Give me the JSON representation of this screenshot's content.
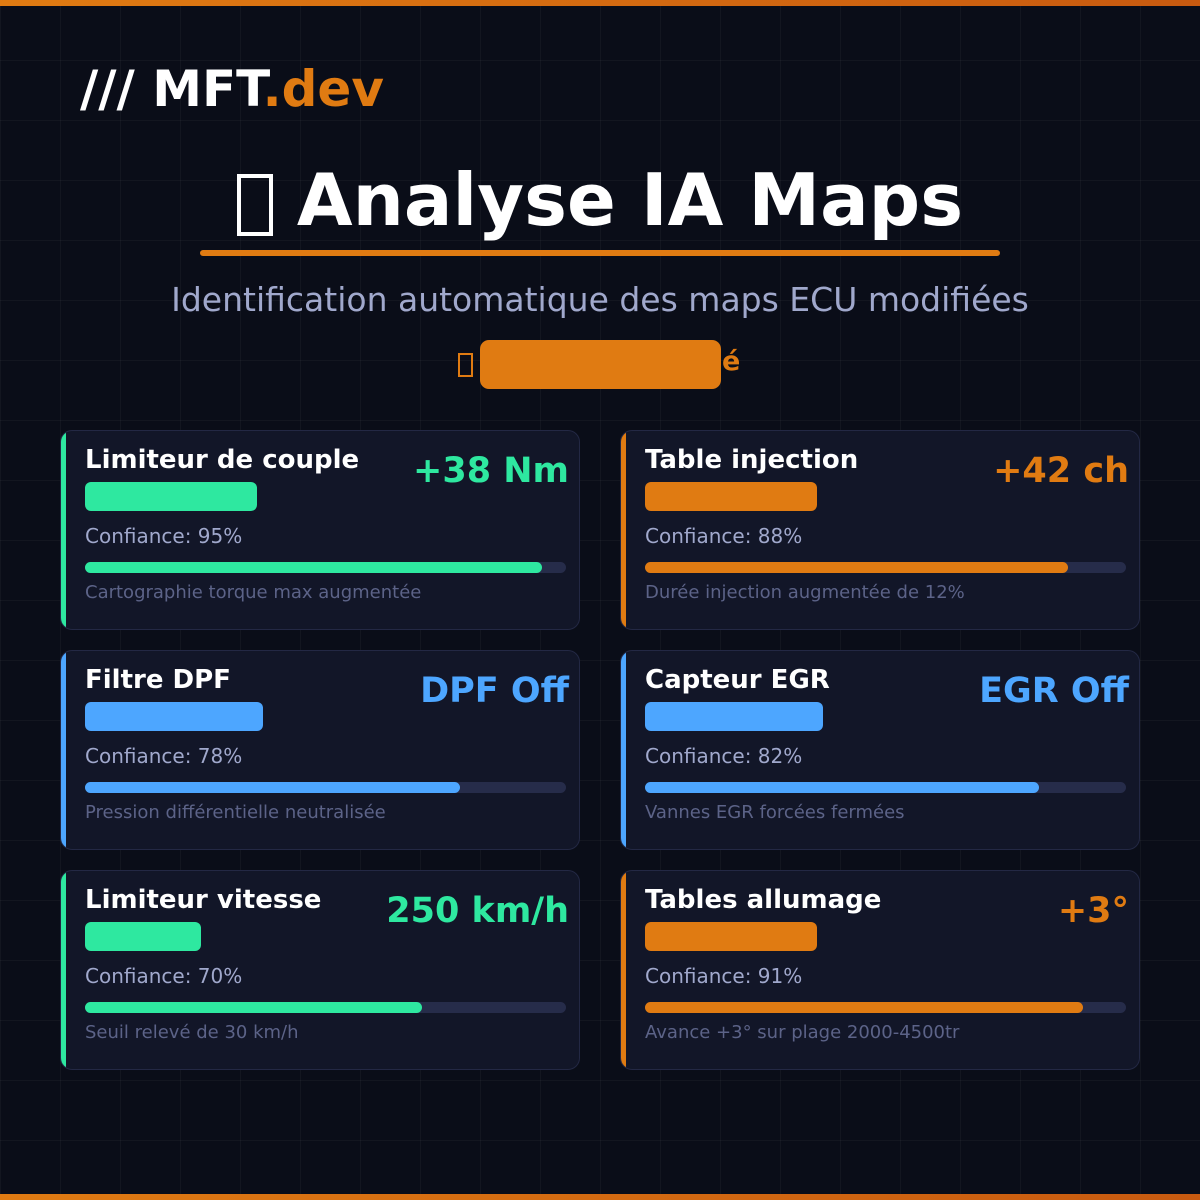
{
  "header": {
    "logo_mark": "/// MFT",
    "logo_accent": ".dev",
    "title": "Analyse IA Maps",
    "subtitle": "Identification automatique des maps ECU modifiées",
    "badge_tail": "é"
  },
  "cards": [
    {
      "title": "Limiteur de couple",
      "value": "+38 Nm",
      "color": "#2ee8a0",
      "confidence": 95,
      "confidence_label": "Confiance: 95%",
      "description": "Cartographie torque max augmentée"
    },
    {
      "title": "Table injection",
      "value": "+42 ch",
      "color": "#e07b12",
      "confidence": 88,
      "confidence_label": "Confiance: 88%",
      "description": "Durée injection augmentée de 12%"
    },
    {
      "title": "Filtre DPF",
      "value": "DPF Off",
      "color": "#4da6ff",
      "confidence": 78,
      "confidence_label": "Confiance: 78%",
      "description": "Pression différentielle neutralisée"
    },
    {
      "title": "Capteur EGR",
      "value": "EGR Off",
      "color": "#4da6ff",
      "confidence": 82,
      "confidence_label": "Confiance: 82%",
      "description": "Vannes EGR forcées fermées"
    },
    {
      "title": "Limiteur vitesse",
      "value": "250 km/h",
      "color": "#2ee8a0",
      "confidence": 70,
      "confidence_label": "Confiance: 70%",
      "description": "Seuil relevé de 30 km/h"
    },
    {
      "title": "Tables allumage",
      "value": "+3°",
      "color": "#e07b12",
      "confidence": 91,
      "confidence_label": "Confiance: 91%",
      "description": "Avance +3° sur plage 2000-4500tr"
    }
  ]
}
